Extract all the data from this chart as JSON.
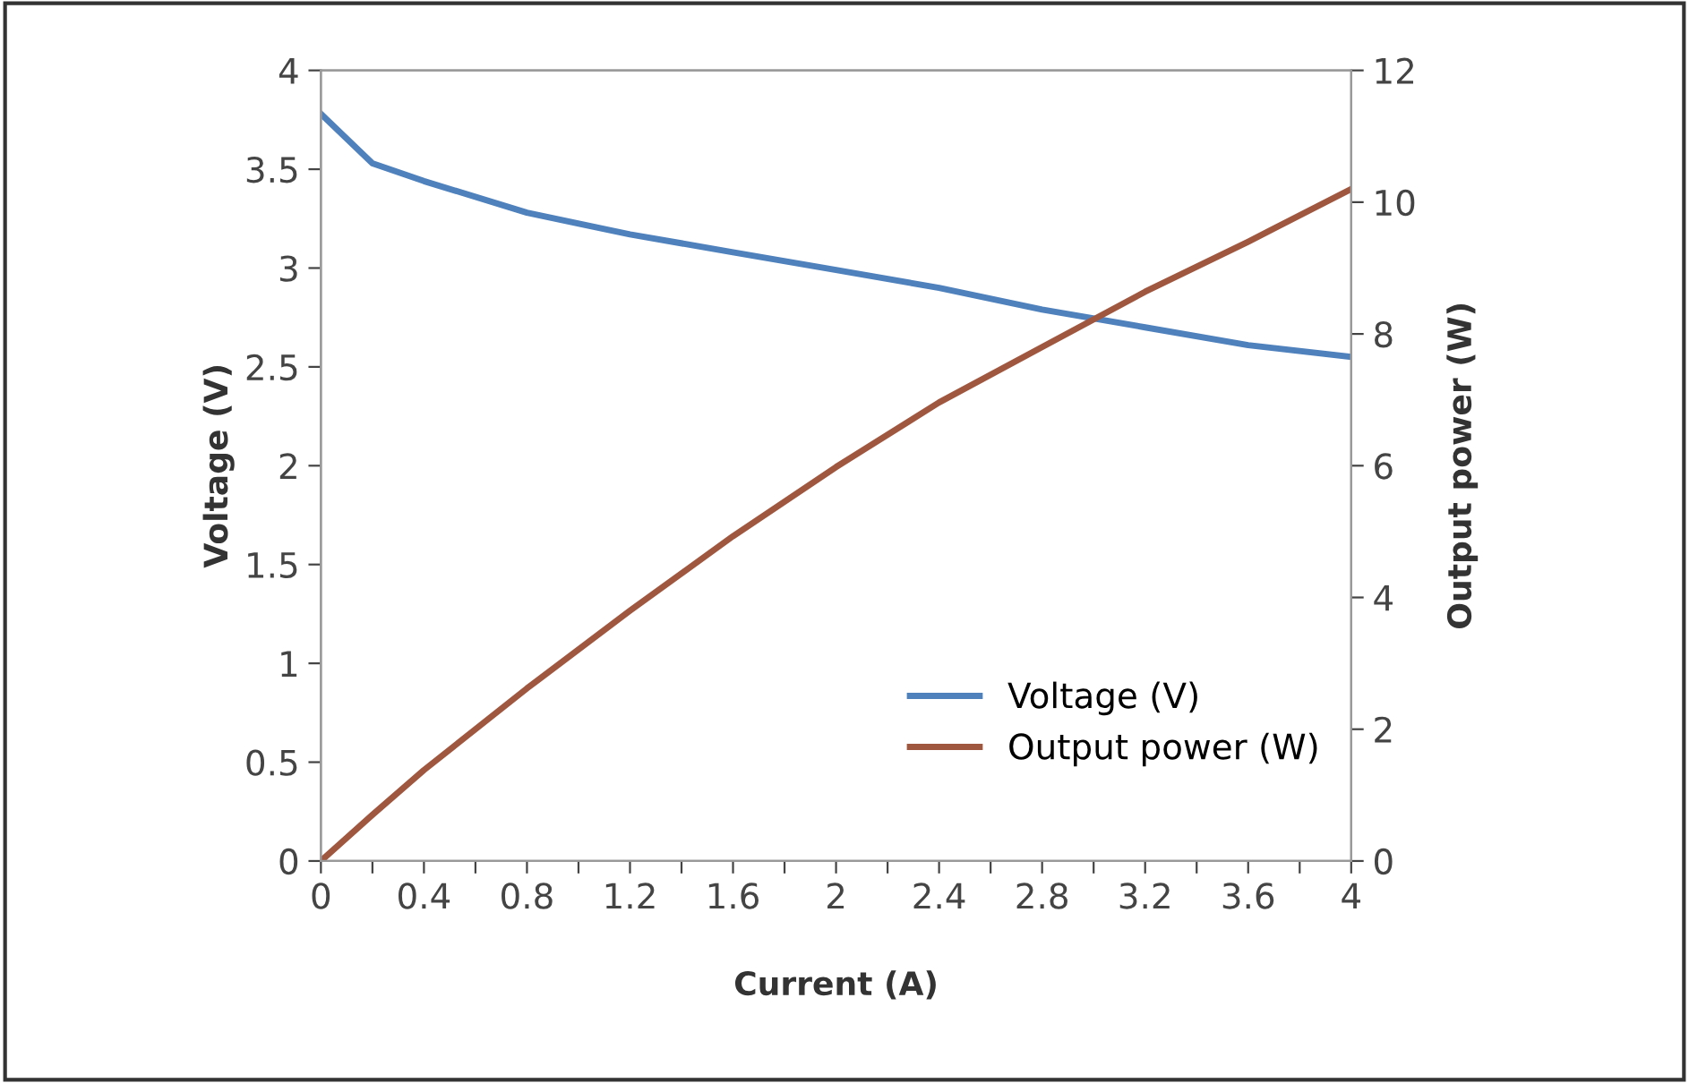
{
  "chart_data": {
    "type": "line",
    "xlabel": "Current (A)",
    "ylabel": "Voltage (V)",
    "y2label": "Output power (W)",
    "x": [
      0,
      0.2,
      0.4,
      0.8,
      1.2,
      1.6,
      2,
      2.4,
      2.8,
      3.2,
      3.6,
      4
    ],
    "series": [
      {
        "name": "Voltage (V)",
        "color": "#4f81bd",
        "values": [
          3.78,
          3.53,
          3.44,
          3.28,
          3.17,
          3.08,
          2.99,
          2.9,
          2.79,
          2.7,
          2.61,
          2.55
        ]
      },
      {
        "name": "Output power (W)",
        "color": "#a0573f",
        "axis": "y2",
        "values": [
          0,
          0.7,
          1.38,
          2.62,
          3.8,
          4.93,
          5.98,
          6.96,
          7.8,
          8.64,
          9.4,
          10.2
        ]
      }
    ],
    "xlim": [
      0,
      4
    ],
    "xticks": [
      0,
      {
        "value": 0.2,
        "label": null
      },
      0.4,
      {
        "value": 0.6,
        "label": null
      },
      0.8,
      {
        "value": 1.0,
        "label": null
      },
      1.2,
      {
        "value": 1.4,
        "label": null
      },
      1.6,
      {
        "value": 1.8,
        "label": null
      },
      2,
      {
        "value": 2.2,
        "label": null
      },
      2.4,
      {
        "value": 2.6,
        "label": null
      },
      2.8,
      {
        "value": 3.0,
        "label": null
      },
      3.2,
      {
        "value": 3.4,
        "label": null
      },
      3.6,
      {
        "value": 3.8,
        "label": null
      },
      4
    ],
    "ylim": [
      0,
      4
    ],
    "yticks": [
      0,
      0.5,
      1,
      1.5,
      2,
      2.5,
      3,
      3.5,
      4
    ],
    "y2lim": [
      0,
      12
    ],
    "y2ticks": [
      0,
      2,
      4,
      6,
      8,
      10,
      12
    ],
    "grid": false,
    "legend": "bottom right",
    "marker": "none",
    "line_style": "solid"
  }
}
